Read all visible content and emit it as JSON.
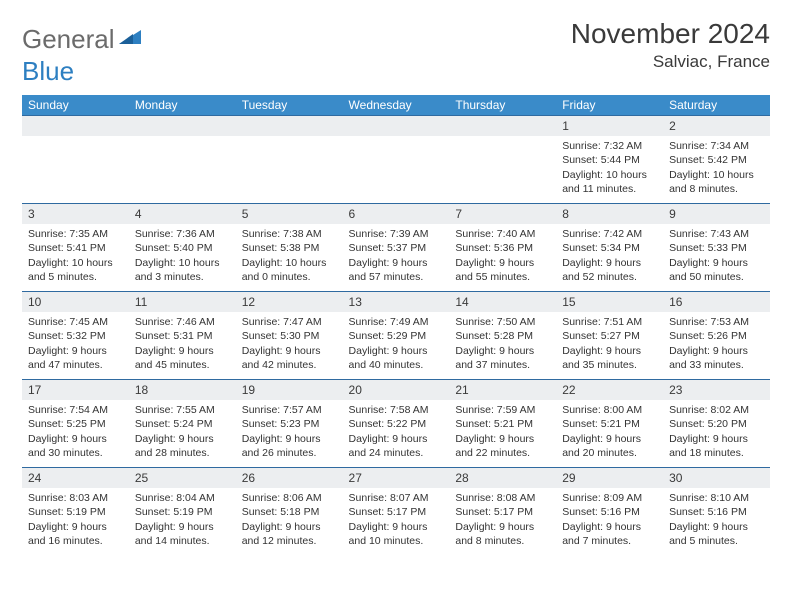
{
  "logo": {
    "word1": "General",
    "word2": "Blue"
  },
  "title": "November 2024",
  "location": "Salviac, France",
  "colors": {
    "header_bg": "#3a8bc9",
    "header_text": "#ffffff",
    "rule": "#2f6aa0",
    "daynum_bg": "#eceef0",
    "text": "#333333",
    "logo_gray": "#6b6b6b",
    "logo_blue": "#2d7fc1"
  },
  "weekdays": [
    "Sunday",
    "Monday",
    "Tuesday",
    "Wednesday",
    "Thursday",
    "Friday",
    "Saturday"
  ],
  "weeks": [
    [
      {
        "n": "",
        "sr": "",
        "ss": "",
        "dl": ""
      },
      {
        "n": "",
        "sr": "",
        "ss": "",
        "dl": ""
      },
      {
        "n": "",
        "sr": "",
        "ss": "",
        "dl": ""
      },
      {
        "n": "",
        "sr": "",
        "ss": "",
        "dl": ""
      },
      {
        "n": "",
        "sr": "",
        "ss": "",
        "dl": ""
      },
      {
        "n": "1",
        "sr": "Sunrise: 7:32 AM",
        "ss": "Sunset: 5:44 PM",
        "dl": "Daylight: 10 hours and 11 minutes."
      },
      {
        "n": "2",
        "sr": "Sunrise: 7:34 AM",
        "ss": "Sunset: 5:42 PM",
        "dl": "Daylight: 10 hours and 8 minutes."
      }
    ],
    [
      {
        "n": "3",
        "sr": "Sunrise: 7:35 AM",
        "ss": "Sunset: 5:41 PM",
        "dl": "Daylight: 10 hours and 5 minutes."
      },
      {
        "n": "4",
        "sr": "Sunrise: 7:36 AM",
        "ss": "Sunset: 5:40 PM",
        "dl": "Daylight: 10 hours and 3 minutes."
      },
      {
        "n": "5",
        "sr": "Sunrise: 7:38 AM",
        "ss": "Sunset: 5:38 PM",
        "dl": "Daylight: 10 hours and 0 minutes."
      },
      {
        "n": "6",
        "sr": "Sunrise: 7:39 AM",
        "ss": "Sunset: 5:37 PM",
        "dl": "Daylight: 9 hours and 57 minutes."
      },
      {
        "n": "7",
        "sr": "Sunrise: 7:40 AM",
        "ss": "Sunset: 5:36 PM",
        "dl": "Daylight: 9 hours and 55 minutes."
      },
      {
        "n": "8",
        "sr": "Sunrise: 7:42 AM",
        "ss": "Sunset: 5:34 PM",
        "dl": "Daylight: 9 hours and 52 minutes."
      },
      {
        "n": "9",
        "sr": "Sunrise: 7:43 AM",
        "ss": "Sunset: 5:33 PM",
        "dl": "Daylight: 9 hours and 50 minutes."
      }
    ],
    [
      {
        "n": "10",
        "sr": "Sunrise: 7:45 AM",
        "ss": "Sunset: 5:32 PM",
        "dl": "Daylight: 9 hours and 47 minutes."
      },
      {
        "n": "11",
        "sr": "Sunrise: 7:46 AM",
        "ss": "Sunset: 5:31 PM",
        "dl": "Daylight: 9 hours and 45 minutes."
      },
      {
        "n": "12",
        "sr": "Sunrise: 7:47 AM",
        "ss": "Sunset: 5:30 PM",
        "dl": "Daylight: 9 hours and 42 minutes."
      },
      {
        "n": "13",
        "sr": "Sunrise: 7:49 AM",
        "ss": "Sunset: 5:29 PM",
        "dl": "Daylight: 9 hours and 40 minutes."
      },
      {
        "n": "14",
        "sr": "Sunrise: 7:50 AM",
        "ss": "Sunset: 5:28 PM",
        "dl": "Daylight: 9 hours and 37 minutes."
      },
      {
        "n": "15",
        "sr": "Sunrise: 7:51 AM",
        "ss": "Sunset: 5:27 PM",
        "dl": "Daylight: 9 hours and 35 minutes."
      },
      {
        "n": "16",
        "sr": "Sunrise: 7:53 AM",
        "ss": "Sunset: 5:26 PM",
        "dl": "Daylight: 9 hours and 33 minutes."
      }
    ],
    [
      {
        "n": "17",
        "sr": "Sunrise: 7:54 AM",
        "ss": "Sunset: 5:25 PM",
        "dl": "Daylight: 9 hours and 30 minutes."
      },
      {
        "n": "18",
        "sr": "Sunrise: 7:55 AM",
        "ss": "Sunset: 5:24 PM",
        "dl": "Daylight: 9 hours and 28 minutes."
      },
      {
        "n": "19",
        "sr": "Sunrise: 7:57 AM",
        "ss": "Sunset: 5:23 PM",
        "dl": "Daylight: 9 hours and 26 minutes."
      },
      {
        "n": "20",
        "sr": "Sunrise: 7:58 AM",
        "ss": "Sunset: 5:22 PM",
        "dl": "Daylight: 9 hours and 24 minutes."
      },
      {
        "n": "21",
        "sr": "Sunrise: 7:59 AM",
        "ss": "Sunset: 5:21 PM",
        "dl": "Daylight: 9 hours and 22 minutes."
      },
      {
        "n": "22",
        "sr": "Sunrise: 8:00 AM",
        "ss": "Sunset: 5:21 PM",
        "dl": "Daylight: 9 hours and 20 minutes."
      },
      {
        "n": "23",
        "sr": "Sunrise: 8:02 AM",
        "ss": "Sunset: 5:20 PM",
        "dl": "Daylight: 9 hours and 18 minutes."
      }
    ],
    [
      {
        "n": "24",
        "sr": "Sunrise: 8:03 AM",
        "ss": "Sunset: 5:19 PM",
        "dl": "Daylight: 9 hours and 16 minutes."
      },
      {
        "n": "25",
        "sr": "Sunrise: 8:04 AM",
        "ss": "Sunset: 5:19 PM",
        "dl": "Daylight: 9 hours and 14 minutes."
      },
      {
        "n": "26",
        "sr": "Sunrise: 8:06 AM",
        "ss": "Sunset: 5:18 PM",
        "dl": "Daylight: 9 hours and 12 minutes."
      },
      {
        "n": "27",
        "sr": "Sunrise: 8:07 AM",
        "ss": "Sunset: 5:17 PM",
        "dl": "Daylight: 9 hours and 10 minutes."
      },
      {
        "n": "28",
        "sr": "Sunrise: 8:08 AM",
        "ss": "Sunset: 5:17 PM",
        "dl": "Daylight: 9 hours and 8 minutes."
      },
      {
        "n": "29",
        "sr": "Sunrise: 8:09 AM",
        "ss": "Sunset: 5:16 PM",
        "dl": "Daylight: 9 hours and 7 minutes."
      },
      {
        "n": "30",
        "sr": "Sunrise: 8:10 AM",
        "ss": "Sunset: 5:16 PM",
        "dl": "Daylight: 9 hours and 5 minutes."
      }
    ]
  ]
}
